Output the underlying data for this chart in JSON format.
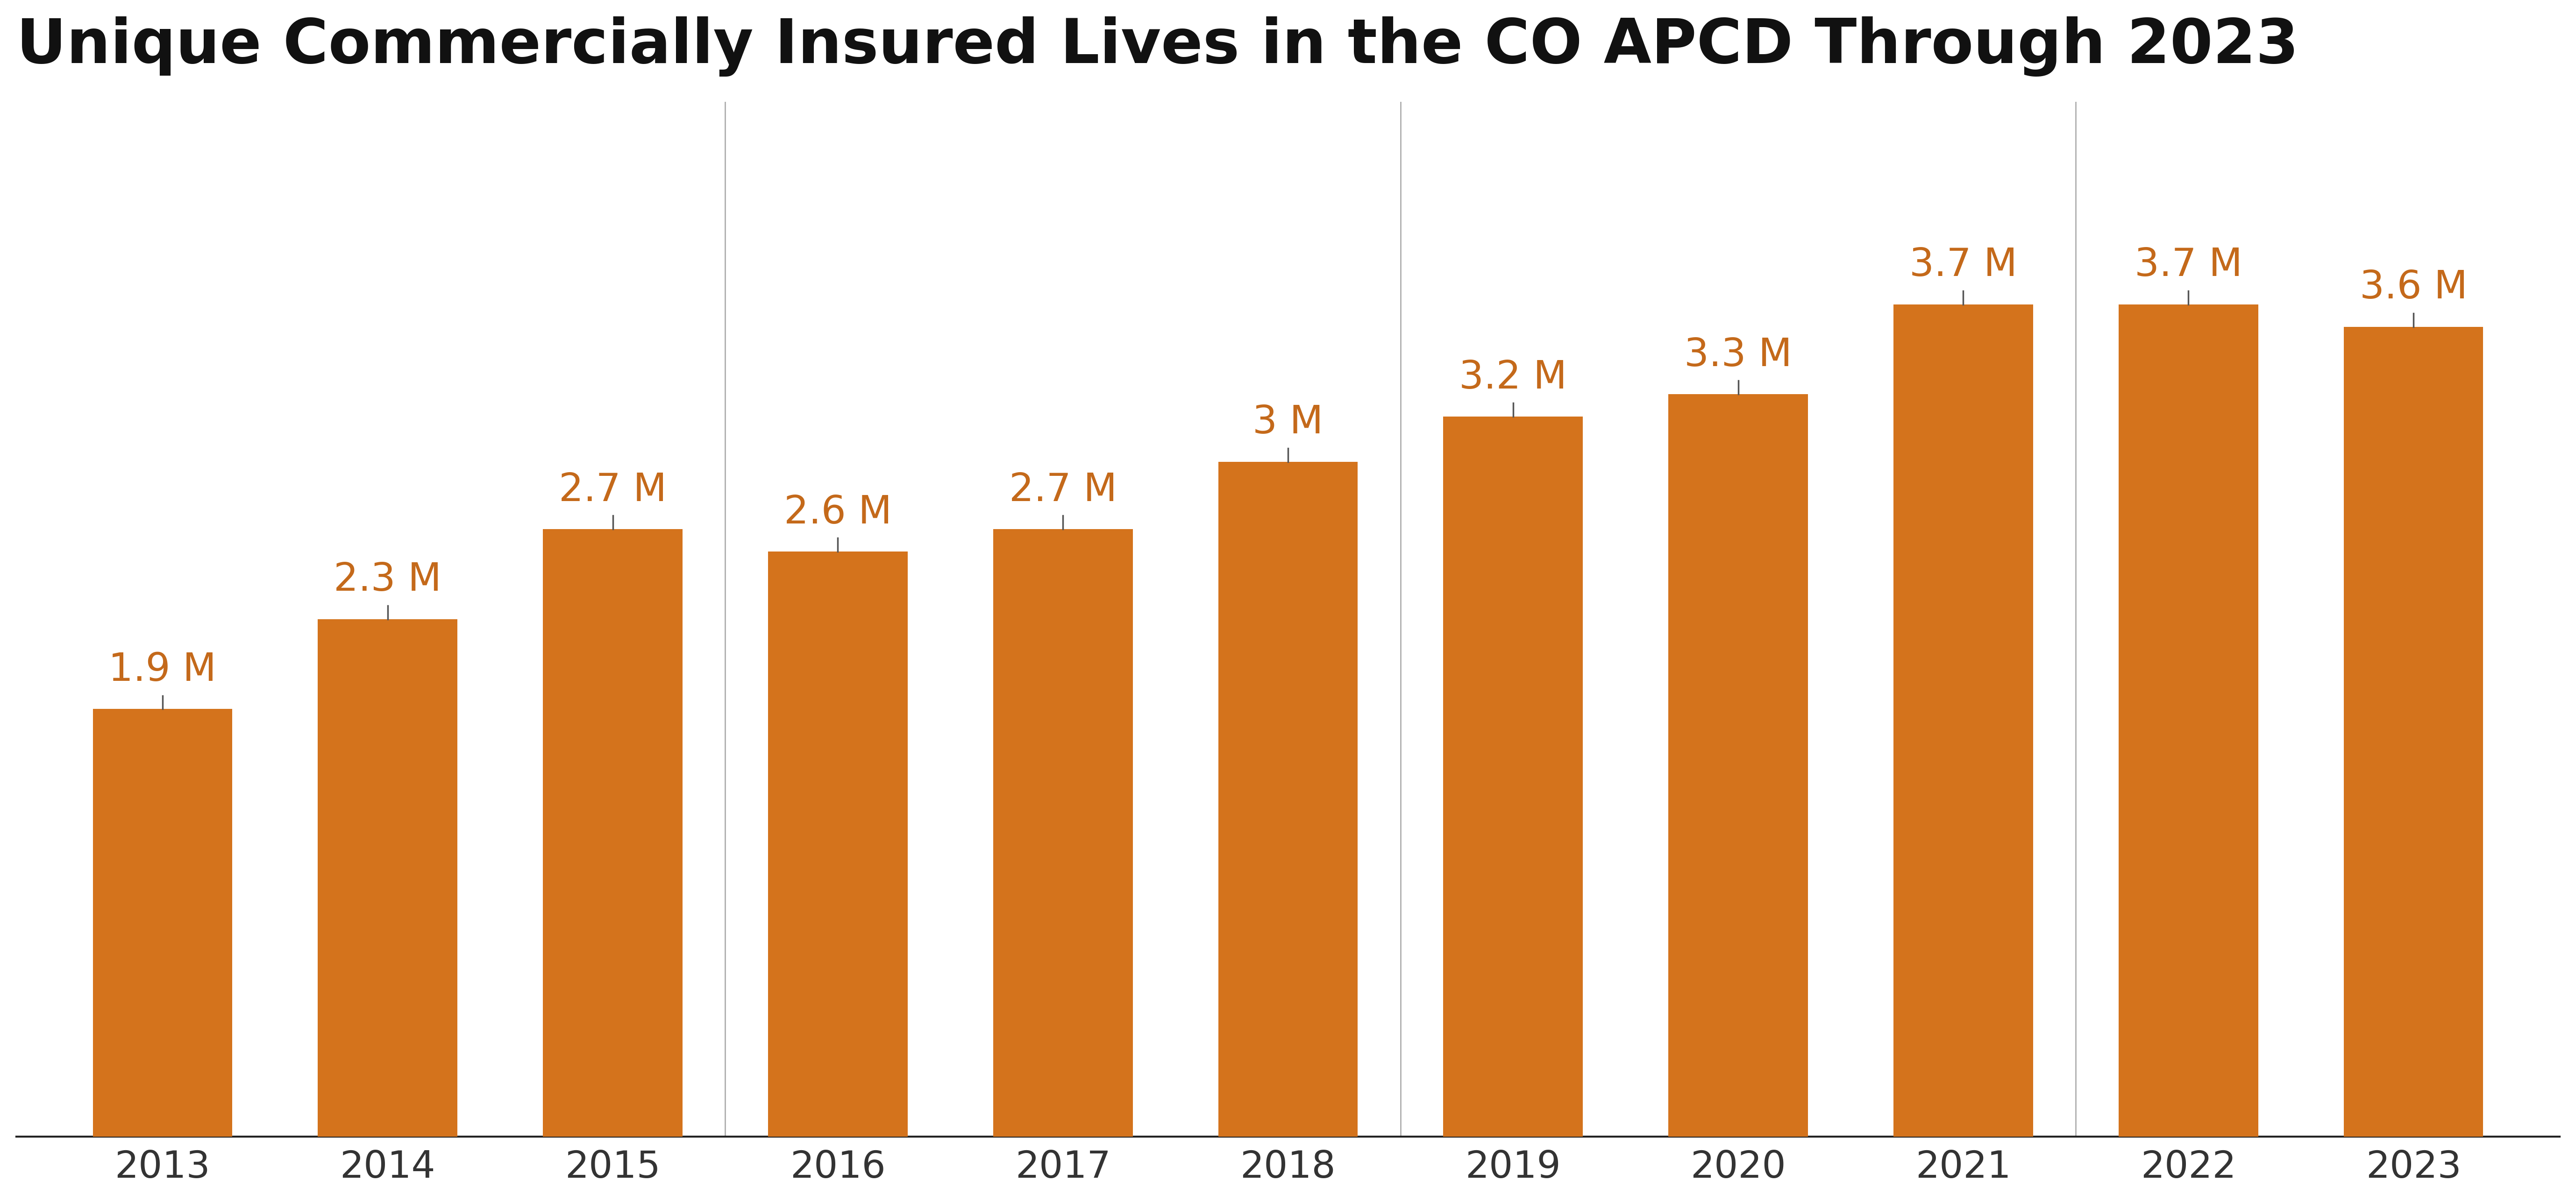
{
  "title": "Unique Commercially Insured Lives in the CO APCD Through 2023",
  "years": [
    2013,
    2014,
    2015,
    2016,
    2017,
    2018,
    2019,
    2020,
    2021,
    2022,
    2023
  ],
  "values": [
    1.9,
    2.3,
    2.7,
    2.6,
    2.7,
    3.0,
    3.2,
    3.3,
    3.7,
    3.7,
    3.6
  ],
  "labels": [
    "1.9 M",
    "2.3 M",
    "2.7 M",
    "2.6 M",
    "2.7 M",
    "3 M",
    "3.2 M",
    "3.3 M",
    "3.7 M",
    "3.7 M",
    "3.6 M"
  ],
  "bar_color": "#D4731C",
  "label_color": "#C4691A",
  "title_color": "#111111",
  "background_color": "#ffffff",
  "gridline_color": "#999999",
  "axis_line_color": "#222222",
  "title_fontsize": 95,
  "label_fontsize": 60,
  "tick_fontsize": 58,
  "ylim": [
    0,
    4.6
  ],
  "bar_width": 0.62,
  "vline_positions": [
    2.5,
    5.5,
    8.5
  ]
}
